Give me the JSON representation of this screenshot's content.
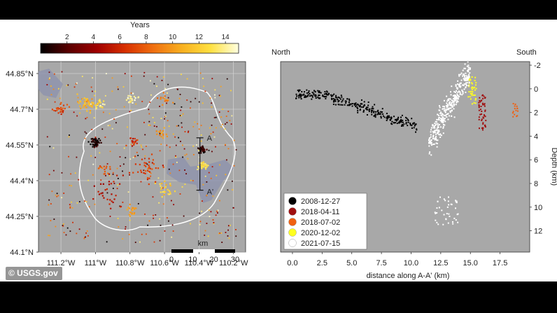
{
  "credit": "© USGS.gov",
  "colorbar": {
    "title": "Years",
    "ticks": [
      "2",
      "4",
      "6",
      "8",
      "10",
      "12",
      "14"
    ],
    "tick_values": [
      2,
      4,
      6,
      8,
      10,
      12,
      14
    ],
    "range": [
      0,
      15
    ],
    "stops": [
      "#000000",
      "#5a0000",
      "#a00000",
      "#d83000",
      "#f07010",
      "#f8b020",
      "#ffe040",
      "#ffffe0"
    ]
  },
  "chart_data": [
    {
      "type": "scatter",
      "title": "",
      "xlabel": "",
      "ylabel": "",
      "x_ticks": [
        "111.2°W",
        "111°W",
        "110.8°W",
        "110.6°W",
        "110.4°W",
        "110.2°W"
      ],
      "x_tick_values": [
        -111.2,
        -111.0,
        -110.8,
        -110.6,
        -110.4,
        -110.2
      ],
      "y_ticks": [
        "44.85°N",
        "44.7°N",
        "44.55°N",
        "44.4°N",
        "44.25°N",
        "44.1°N"
      ],
      "y_tick_values": [
        44.85,
        44.7,
        44.55,
        44.4,
        44.25,
        44.1
      ],
      "xlim": [
        -111.33,
        -110.13
      ],
      "ylim": [
        44.1,
        44.9
      ],
      "grid": true,
      "section_line": {
        "start_label": "A",
        "end_label": "A'",
        "lon": -110.395,
        "lat_start": 44.58,
        "lat_end": 44.36
      },
      "scale_bar": {
        "title": "km",
        "ticks": [
          "0",
          "10",
          "20",
          "30"
        ],
        "tick_values": [
          0,
          10,
          20,
          30
        ]
      },
      "clusters": [
        {
          "lon": -111.05,
          "lat": 44.72,
          "spread": 0.04,
          "count": 45,
          "age": 11
        },
        {
          "lon": -110.97,
          "lat": 44.72,
          "spread": 0.03,
          "count": 20,
          "age": 13
        },
        {
          "lon": -111.2,
          "lat": 44.7,
          "spread": 0.04,
          "count": 25,
          "age": 7
        },
        {
          "lon": -110.78,
          "lat": 44.74,
          "spread": 0.03,
          "count": 20,
          "age": 14
        },
        {
          "lon": -110.6,
          "lat": 44.74,
          "spread": 0.03,
          "count": 15,
          "age": 9
        },
        {
          "lon": -111.0,
          "lat": 44.56,
          "spread": 0.025,
          "count": 55,
          "age": 0.6
        },
        {
          "lon": -110.78,
          "lat": 44.56,
          "spread": 0.03,
          "count": 20,
          "age": 6
        },
        {
          "lon": -110.38,
          "lat": 44.53,
          "spread": 0.02,
          "count": 40,
          "age": 1
        },
        {
          "lon": -110.38,
          "lat": 44.46,
          "spread": 0.025,
          "count": 30,
          "age": 13
        },
        {
          "lon": -110.62,
          "lat": 44.6,
          "spread": 0.03,
          "count": 15,
          "age": 10
        },
        {
          "lon": -110.95,
          "lat": 44.45,
          "spread": 0.03,
          "count": 15,
          "age": 8
        },
        {
          "lon": -110.6,
          "lat": 44.37,
          "spread": 0.04,
          "count": 25,
          "age": 12
        },
        {
          "lon": -110.8,
          "lat": 44.27,
          "spread": 0.03,
          "count": 20,
          "age": 10
        },
        {
          "lon": -110.7,
          "lat": 44.45,
          "spread": 0.08,
          "count": 40,
          "age": 7
        },
        {
          "lon": -110.9,
          "lat": 44.35,
          "spread": 0.1,
          "count": 30,
          "age": 5
        }
      ]
    },
    {
      "type": "scatter",
      "title": "",
      "xlabel": "distance along A-A' (km)",
      "ylabel": "Depth (km)",
      "left_end_label": "North",
      "right_end_label": "South",
      "x_ticks": [
        "0.0",
        "2.5",
        "5.0",
        "7.5",
        "10.0",
        "12.5",
        "15.0",
        "17.5"
      ],
      "x_tick_values": [
        0,
        2.5,
        5,
        7.5,
        10,
        12.5,
        15,
        17.5
      ],
      "y_ticks": [
        "-2",
        "0",
        "2",
        "4",
        "6",
        "8",
        "10",
        "12"
      ],
      "y_tick_values": [
        -2,
        0,
        2,
        4,
        6,
        8,
        10,
        12
      ],
      "xlim": [
        -1,
        20
      ],
      "ylim": [
        13.8,
        -2.3
      ],
      "legend": {
        "placement": "bottom-left",
        "entries": [
          {
            "label": "2008-12-27",
            "color": "#000000"
          },
          {
            "label": "2018-04-11",
            "color": "#a01010"
          },
          {
            "label": "2018-07-02",
            "color": "#f06010"
          },
          {
            "label": "2020-12-02",
            "color": "#ffff20"
          },
          {
            "label": "2021-07-15",
            "color": "#ffffff"
          }
        ]
      },
      "clusters": [
        {
          "name": "2008-12-27",
          "color": "#000000",
          "x_range": [
            0.3,
            10.5
          ],
          "depth_range": [
            0.5,
            3.2
          ],
          "count": 300,
          "trend": "dipping"
        },
        {
          "name": "2018-04-11",
          "color": "#a01010",
          "x_range": [
            15.7,
            16.3
          ],
          "depth_range": [
            0.5,
            3.5
          ],
          "count": 50,
          "trend": "none"
        },
        {
          "name": "2018-07-02",
          "color": "#f06010",
          "x_range": [
            18.5,
            19.0
          ],
          "depth_range": [
            1.2,
            2.5
          ],
          "count": 15,
          "trend": "none"
        },
        {
          "name": "2020-12-02",
          "color": "#ffff20",
          "x_range": [
            14.8,
            15.5
          ],
          "depth_range": [
            -1.0,
            1.3
          ],
          "count": 40,
          "trend": "none"
        },
        {
          "name": "2021-07-15",
          "color": "#ffffff",
          "x_range": [
            11.5,
            15.0
          ],
          "depth_range": [
            -1.5,
            4.5
          ],
          "count": 350,
          "trend": "rising"
        },
        {
          "name": "2021-07-15",
          "color": "#ffffff",
          "x_range": [
            12.0,
            14.0
          ],
          "depth_range": [
            9.0,
            11.5
          ],
          "count": 40,
          "trend": "none"
        }
      ]
    }
  ]
}
